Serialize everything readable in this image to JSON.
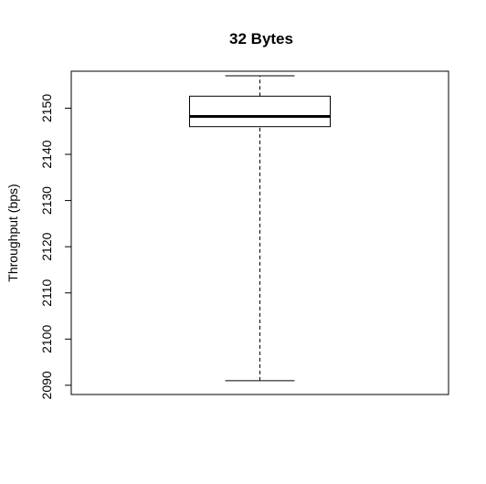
{
  "chart_data": {
    "type": "box",
    "title": "32 Bytes",
    "xlabel": "",
    "ylabel": "Throughput (bps)",
    "ylim": [
      2088,
      2158
    ],
    "yticks": [
      2090,
      2100,
      2110,
      2120,
      2130,
      2140,
      2150
    ],
    "boxes": [
      {
        "min": 2091,
        "q1": 2146,
        "median": 2148.2,
        "q3": 2152.6,
        "max": 2157
      }
    ],
    "grid": false,
    "colors": {
      "line": "#000000",
      "background": "#ffffff"
    }
  }
}
